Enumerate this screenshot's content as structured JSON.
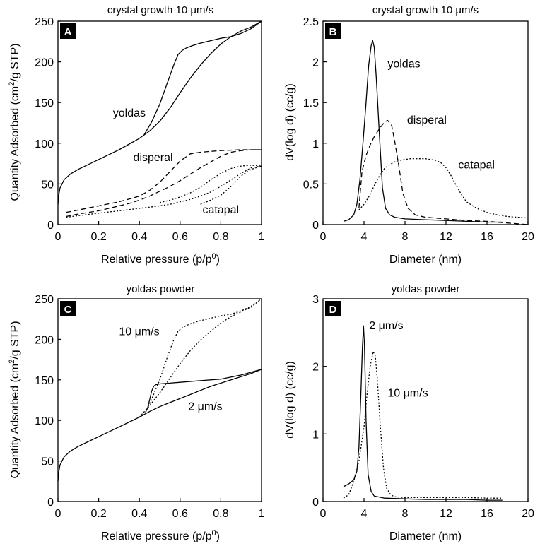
{
  "chart_data": [
    {
      "id": "A",
      "panel_label": "A",
      "type": "line",
      "title": "crystal growth 10 μm/s",
      "xlabel": "Relative pressure (p/p0)",
      "xlabel_parts": [
        "Relative pressure (p/p",
        "0",
        ")"
      ],
      "ylabel": "Quantity Adsorbed (cm2/g STP)",
      "ylabel_parts": [
        "Quantity Adsorbed (cm",
        "2",
        "/g STP)"
      ],
      "xlim": [
        0,
        1
      ],
      "ylim": [
        0,
        250
      ],
      "xticks": [
        0,
        0.2,
        0.4,
        0.6,
        0.8,
        1
      ],
      "xtick_labels": [
        "0",
        "0.2",
        "0.4",
        "0.6",
        "0.8",
        "1"
      ],
      "yticks": [
        0,
        50,
        100,
        150,
        200,
        250
      ],
      "ytick_labels": [
        "0",
        "50",
        "100",
        "150",
        "200",
        "250"
      ],
      "annotations": [
        {
          "text": "yoldas",
          "x": 0.27,
          "y": 133
        },
        {
          "text": "disperal",
          "x": 0.37,
          "y": 78
        },
        {
          "text": "catapal",
          "x": 0.71,
          "y": 14
        }
      ],
      "series": [
        {
          "style": "solid",
          "x": [
            0.0,
            0.003,
            0.01,
            0.03,
            0.06,
            0.1,
            0.15,
            0.2,
            0.25,
            0.3,
            0.35,
            0.4,
            0.45,
            0.5,
            0.55,
            0.6,
            0.65,
            0.7,
            0.75,
            0.8,
            0.85,
            0.9,
            0.95,
            1.0
          ],
          "y": [
            25,
            35,
            45,
            55,
            62,
            68,
            74,
            80,
            86,
            92,
            99,
            106,
            115,
            127,
            143,
            162,
            180,
            196,
            210,
            222,
            231,
            238,
            243,
            250
          ]
        },
        {
          "style": "solid",
          "x": [
            0.42,
            0.46,
            0.5,
            0.54,
            0.57,
            0.59,
            0.61,
            0.63,
            0.66,
            0.7,
            0.75,
            0.8,
            0.85,
            0.9,
            0.95,
            1.0
          ],
          "y": [
            109,
            126,
            148,
            176,
            197,
            209,
            214,
            217,
            220,
            223,
            226,
            229,
            231,
            235,
            241,
            250
          ]
        },
        {
          "style": "dashed",
          "x": [
            0.04,
            0.1,
            0.15,
            0.2,
            0.25,
            0.3,
            0.35,
            0.4,
            0.45,
            0.5,
            0.55,
            0.6,
            0.65,
            0.7,
            0.75,
            0.8,
            0.85,
            0.9,
            0.95,
            1.0
          ],
          "y": [
            10,
            13,
            15,
            17,
            20,
            23,
            26,
            30,
            35,
            41,
            47,
            54,
            62,
            70,
            77,
            84,
            89,
            91,
            92,
            92
          ]
        },
        {
          "style": "dashed",
          "x": [
            0.04,
            0.1,
            0.2,
            0.3,
            0.4,
            0.45,
            0.5,
            0.55,
            0.6,
            0.65,
            0.7,
            0.75,
            0.8,
            0.9,
            1.0
          ],
          "y": [
            15,
            18,
            23,
            28,
            35,
            42,
            52,
            65,
            78,
            87,
            89,
            90,
            91,
            92,
            92
          ]
        },
        {
          "style": "dotted",
          "x": [
            0.04,
            0.1,
            0.2,
            0.3,
            0.4,
            0.5,
            0.55,
            0.6,
            0.65,
            0.7,
            0.75,
            0.8,
            0.85,
            0.9,
            0.95,
            1.0
          ],
          "y": [
            9,
            11,
            14,
            17,
            20,
            23,
            25,
            28,
            31,
            35,
            40,
            47,
            55,
            63,
            70,
            72
          ]
        },
        {
          "style": "dotted",
          "x": [
            0.5,
            0.55,
            0.6,
            0.65,
            0.7,
            0.75,
            0.8,
            0.85,
            0.9,
            0.95,
            1.0
          ],
          "y": [
            27,
            30,
            34,
            39,
            46,
            55,
            63,
            69,
            72,
            73,
            72
          ]
        },
        {
          "style": "dotted",
          "x": [
            0.7,
            0.75,
            0.8,
            0.85,
            0.9,
            0.95,
            1.0
          ],
          "y": [
            25,
            30,
            36,
            47,
            60,
            68,
            72
          ]
        }
      ]
    },
    {
      "id": "B",
      "panel_label": "B",
      "type": "line",
      "title": "crystal growth 10 μm/s",
      "xlabel": "Diameter (nm)",
      "ylabel": "dV(log d) (cc/g)",
      "xlim": [
        0,
        20
      ],
      "ylim": [
        0,
        2.5
      ],
      "xticks": [
        0,
        4,
        8,
        12,
        16,
        20
      ],
      "xtick_labels": [
        "0",
        "4",
        "8",
        "12",
        "16",
        "20"
      ],
      "yticks": [
        0,
        0.5,
        1,
        1.5,
        2,
        2.5
      ],
      "ytick_labels": [
        "0",
        "0.5",
        "1",
        "1.5",
        "2",
        "2.5"
      ],
      "annotations": [
        {
          "text": "yoldas",
          "x": 6.3,
          "y": 1.93
        },
        {
          "text": "disperal",
          "x": 8.2,
          "y": 1.24
        },
        {
          "text": "catapal",
          "x": 13.2,
          "y": 0.69
        }
      ],
      "series": [
        {
          "style": "solid",
          "x": [
            2.0,
            2.5,
            3.0,
            3.3,
            3.6,
            3.9,
            4.2,
            4.45,
            4.7,
            4.85,
            5.0,
            5.2,
            5.5,
            5.8,
            6.1,
            6.5,
            7.0,
            8.0,
            10.0,
            12.0,
            14.0,
            16.0,
            17.5
          ],
          "y": [
            0.04,
            0.06,
            0.12,
            0.25,
            0.55,
            1.0,
            1.5,
            1.95,
            2.2,
            2.26,
            2.18,
            1.8,
            1.1,
            0.45,
            0.2,
            0.12,
            0.09,
            0.07,
            0.06,
            0.05,
            0.04,
            0.03,
            0.03
          ]
        },
        {
          "style": "dashed",
          "x": [
            3.5,
            3.8,
            4.2,
            4.6,
            5.0,
            5.5,
            6.0,
            6.3,
            6.7,
            7.0,
            7.4,
            7.8,
            8.3,
            9.0,
            10.0,
            12.0,
            14.0,
            16.0,
            18.0,
            20.0
          ],
          "y": [
            0.2,
            0.65,
            0.85,
            0.98,
            1.08,
            1.18,
            1.26,
            1.28,
            1.22,
            1.02,
            0.72,
            0.38,
            0.2,
            0.12,
            0.09,
            0.07,
            0.05,
            0.04,
            0.02,
            0.0
          ]
        },
        {
          "style": "dotted",
          "x": [
            3.5,
            4.0,
            4.5,
            5.0,
            5.5,
            6.0,
            6.5,
            7.0,
            7.5,
            8.0,
            8.5,
            9.0,
            10.0,
            11.0,
            11.5,
            12.0,
            12.5,
            13.0,
            13.5,
            14.0,
            15.0,
            16.0,
            17.0,
            18.0,
            19.0,
            20.0
          ],
          "y": [
            0.18,
            0.25,
            0.35,
            0.48,
            0.6,
            0.69,
            0.74,
            0.77,
            0.79,
            0.8,
            0.81,
            0.81,
            0.81,
            0.79,
            0.76,
            0.7,
            0.6,
            0.48,
            0.37,
            0.28,
            0.2,
            0.15,
            0.12,
            0.1,
            0.09,
            0.08
          ]
        }
      ]
    },
    {
      "id": "C",
      "panel_label": "C",
      "type": "line",
      "title": "yoldas powder",
      "xlabel": "Relative pressure (p/p0)",
      "xlabel_parts": [
        "Relative pressure (p/p",
        "0",
        ")"
      ],
      "ylabel": "Quantity Adsorbed (cm2/g STP)",
      "ylabel_parts": [
        "Quantity Adsorbed (cm",
        "2",
        "/g STP)"
      ],
      "xlim": [
        0,
        1
      ],
      "ylim": [
        0,
        250
      ],
      "xticks": [
        0,
        0.2,
        0.4,
        0.6,
        0.8,
        1
      ],
      "xtick_labels": [
        "0",
        "0.2",
        "0.4",
        "0.6",
        "0.8",
        "1"
      ],
      "yticks": [
        0,
        50,
        100,
        150,
        200,
        250
      ],
      "ytick_labels": [
        "0",
        "50",
        "100",
        "150",
        "200",
        "250"
      ],
      "annotations": [
        {
          "text": "10 μm/s",
          "x": 0.3,
          "y": 205
        },
        {
          "text": "2 μm/s",
          "x": 0.64,
          "y": 113
        }
      ],
      "series": [
        {
          "style": "solid",
          "x": [
            0.0,
            0.003,
            0.01,
            0.03,
            0.06,
            0.1,
            0.15,
            0.2,
            0.25,
            0.3,
            0.35,
            0.4,
            0.45,
            0.5,
            0.55,
            0.6,
            0.65,
            0.7,
            0.75,
            0.8,
            0.85,
            0.9,
            0.95,
            1.0
          ],
          "y": [
            25,
            35,
            45,
            55,
            62,
            68,
            74,
            80,
            86,
            92,
            98,
            104,
            111,
            117,
            122,
            127,
            132,
            137,
            142,
            146,
            150,
            154,
            158,
            163
          ]
        },
        {
          "style": "solid",
          "x": [
            0.43,
            0.44,
            0.45,
            0.46,
            0.47,
            0.48,
            0.5,
            0.55,
            0.6,
            0.7,
            0.8,
            0.9,
            1.0
          ],
          "y": [
            110,
            115,
            125,
            136,
            142,
            144,
            145,
            146,
            147,
            149,
            151,
            156,
            163
          ]
        },
        {
          "style": "dotted",
          "x": [
            0.4,
            0.45,
            0.5,
            0.55,
            0.6,
            0.65,
            0.7,
            0.75,
            0.8,
            0.85,
            0.9,
            0.95,
            1.0
          ],
          "y": [
            104,
            118,
            134,
            152,
            170,
            186,
            199,
            210,
            220,
            228,
            234,
            240,
            250
          ]
        },
        {
          "style": "dotted",
          "x": [
            0.43,
            0.46,
            0.5,
            0.54,
            0.57,
            0.59,
            0.61,
            0.63,
            0.66,
            0.7,
            0.75,
            0.8,
            0.85,
            0.9,
            0.95,
            1.0
          ],
          "y": [
            110,
            126,
            150,
            180,
            200,
            210,
            214,
            217,
            220,
            223,
            226,
            229,
            231,
            235,
            241,
            250
          ]
        }
      ]
    },
    {
      "id": "D",
      "panel_label": "D",
      "type": "line",
      "title": "yoldas powder",
      "xlabel": "Diameter (nm)",
      "ylabel": "dV(log d) (cc/g)",
      "xlim": [
        0,
        20
      ],
      "ylim": [
        0,
        3
      ],
      "xticks": [
        0,
        4,
        8,
        12,
        16,
        20
      ],
      "xtick_labels": [
        "0",
        "4",
        "8",
        "12",
        "16",
        "20"
      ],
      "yticks": [
        0,
        1,
        2,
        3
      ],
      "ytick_labels": [
        "0",
        "1",
        "2",
        "3"
      ],
      "annotations": [
        {
          "text": "2 μm/s",
          "x": 4.5,
          "y": 2.55
        },
        {
          "text": "10 μm/s",
          "x": 6.3,
          "y": 1.55
        }
      ],
      "series": [
        {
          "style": "solid",
          "x": [
            2.0,
            2.5,
            3.0,
            3.3,
            3.5,
            3.7,
            3.85,
            3.95,
            4.05,
            4.2,
            4.4,
            4.7,
            5.0,
            6.0,
            8.0,
            10.0,
            12.0,
            14.0,
            16.0,
            17.5
          ],
          "y": [
            0.22,
            0.26,
            0.32,
            0.45,
            0.8,
            1.6,
            2.3,
            2.6,
            2.3,
            1.2,
            0.4,
            0.15,
            0.08,
            0.05,
            0.04,
            0.03,
            0.03,
            0.03,
            0.02,
            0.02
          ]
        },
        {
          "style": "dotted",
          "x": [
            2.0,
            2.5,
            3.0,
            3.5,
            4.0,
            4.3,
            4.6,
            4.9,
            5.1,
            5.3,
            5.6,
            5.9,
            6.2,
            6.6,
            7.0,
            8.0,
            10.0,
            12.0,
            14.0,
            16.0,
            17.5
          ],
          "y": [
            0.05,
            0.1,
            0.3,
            0.6,
            1.1,
            1.6,
            2.0,
            2.22,
            2.15,
            1.8,
            1.1,
            0.5,
            0.2,
            0.1,
            0.07,
            0.06,
            0.06,
            0.06,
            0.06,
            0.05,
            0.05
          ]
        }
      ]
    }
  ]
}
